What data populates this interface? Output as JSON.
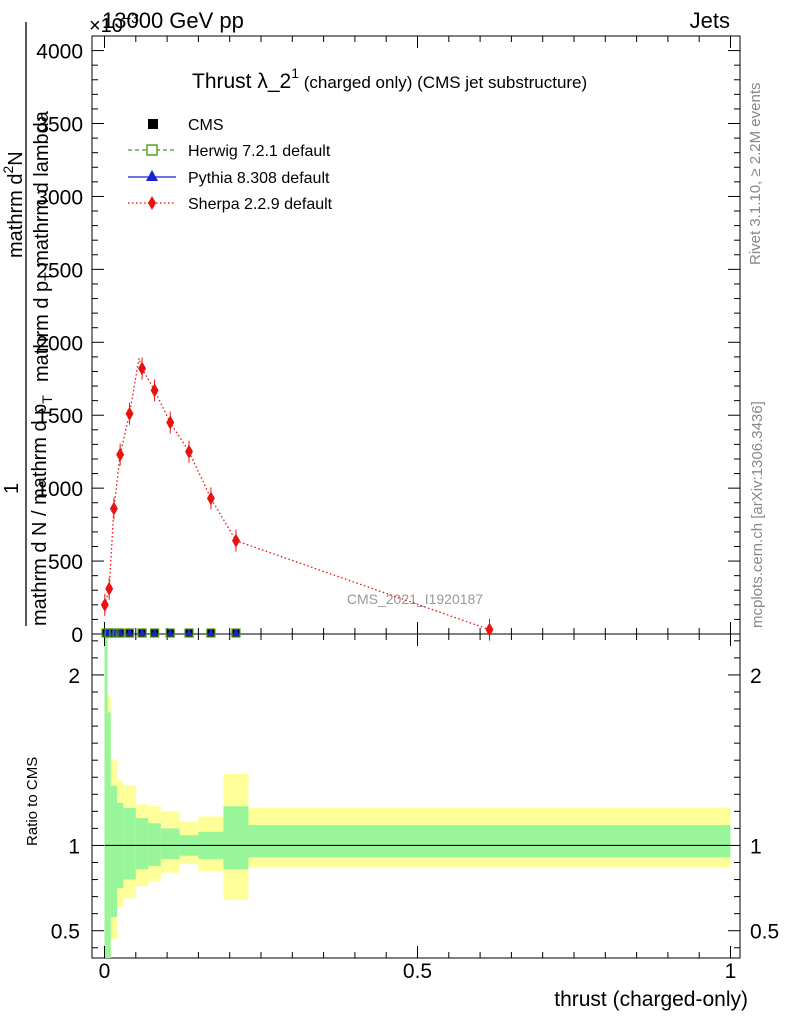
{
  "header": {
    "energy_label": "13000 GeV pp",
    "process_label": "Jets",
    "exponent_label": "×10",
    "exponent_power": "−3",
    "rivet_label": "Rivet 3.1.10, ≥ 2.2M events",
    "mcplots_label": "mcplots.cern.ch [arXiv:1306.3436]",
    "watermark": "CMS_2021_I1920187"
  },
  "chart_data": [
    {
      "type": "line",
      "title_main": "Thrust λ_2",
      "title_sup": "1",
      "title_rest": " (charged only) (CMS jet substructure)",
      "ylabel_top": "mathrm d",
      "ylabel_top_sup": "2",
      "ylabel_top_rest": "N",
      "ylabel_top2": "mathrm d p",
      "ylabel_top2_sub": "T",
      "ylabel_top3": " mathrm d lambda",
      "ylabel_one": "1",
      "ylabel_bottom": "mathrm d N / mathrm d p",
      "ylabel_bottom_sub": "T",
      "xlim": [
        0,
        1
      ],
      "ylim": [
        0,
        4.1
      ],
      "yticks": [
        {
          "v": 0,
          "label": "0"
        },
        {
          "v": 0.5,
          "label": "500"
        },
        {
          "v": 1.0,
          "label": "1000"
        },
        {
          "v": 1.5,
          "label": "1500"
        },
        {
          "v": 2.0,
          "label": "2000"
        },
        {
          "v": 2.5,
          "label": "2500"
        },
        {
          "v": 3.0,
          "label": "3000"
        },
        {
          "v": 3.5,
          "label": "3500"
        },
        {
          "v": 4.0,
          "label": "4000"
        }
      ],
      "legend": [
        "CMS",
        "Herwig 7.2.1 default",
        "Pythia 8.308 default",
        "Sherpa 2.2.9 default"
      ],
      "series": [
        {
          "name": "CMS",
          "color": "#000000",
          "marker": "square",
          "x": [
            0.0025,
            0.0075,
            0.015,
            0.025,
            0.04,
            0.06,
            0.08,
            0.105,
            0.135,
            0.17,
            0.21
          ],
          "y": [
            0,
            0,
            0,
            0,
            0,
            0,
            0,
            0,
            0,
            0,
            0
          ]
        },
        {
          "name": "Herwig 7.2.1 default",
          "color": "#4a9a1c",
          "marker": "open-square",
          "x": [
            0.0025,
            0.0075,
            0.015,
            0.025,
            0.04,
            0.06,
            0.08,
            0.105,
            0.135,
            0.17,
            0.21
          ],
          "y": [
            0,
            0,
            0,
            0,
            0,
            0,
            0,
            0,
            0,
            0,
            0
          ]
        },
        {
          "name": "Pythia 8.308 default",
          "color": "#1a22cc",
          "marker": "triangle",
          "x": [
            0.0025,
            0.0075,
            0.015,
            0.025,
            0.04,
            0.06,
            0.08,
            0.105,
            0.135,
            0.17,
            0.21
          ],
          "y": [
            0,
            0,
            0,
            0,
            0,
            0,
            0,
            0,
            0,
            0,
            0
          ]
        },
        {
          "name": "Sherpa 2.2.9 default",
          "color": "#e8120e",
          "marker": "diamond",
          "x": [
            0.0005,
            0.0075,
            0.015,
            0.025,
            0.04,
            0.06,
            0.08,
            0.105,
            0.135,
            0.17,
            0.21,
            0.615
          ],
          "y": [
            0.2,
            0.31,
            0.86,
            1.23,
            1.51,
            1.82,
            1.67,
            1.45,
            1.25,
            0.93,
            0.64,
            0.03
          ],
          "step_peak": [
            0.055,
            1.89
          ]
        }
      ]
    },
    {
      "type": "area",
      "ylabel": "Ratio to CMS",
      "xlabel": "thrust (charged-only)",
      "xlim": [
        0,
        1
      ],
      "ylim": [
        0.34,
        2.24
      ],
      "xticks": [
        {
          "v": 0,
          "label": "0"
        },
        {
          "v": 0.5,
          "label": "0.5"
        },
        {
          "v": 1,
          "label": "1"
        }
      ],
      "yticks": [
        {
          "v": 0.5,
          "label": "0.5"
        },
        {
          "v": 1,
          "label": "1"
        },
        {
          "v": 2,
          "label": "2"
        }
      ],
      "bands": [
        {
          "x0": 0.0,
          "x1": 0.005,
          "y_lo": 0.34,
          "y_hi": 2.24,
          "g_lo": 0.34,
          "g_hi": 2.24
        },
        {
          "x0": 0.005,
          "x1": 0.01,
          "y_lo": 0.34,
          "y_hi": 1.88,
          "g_lo": 0.34,
          "g_hi": 1.78
        },
        {
          "x0": 0.01,
          "x1": 0.02,
          "y_lo": 0.45,
          "y_hi": 1.5,
          "g_lo": 0.58,
          "g_hi": 1.35
        },
        {
          "x0": 0.02,
          "x1": 0.03,
          "y_lo": 0.64,
          "y_hi": 1.38,
          "g_lo": 0.75,
          "g_hi": 1.25
        },
        {
          "x0": 0.03,
          "x1": 0.05,
          "y_lo": 0.69,
          "y_hi": 1.35,
          "g_lo": 0.8,
          "g_hi": 1.22
        },
        {
          "x0": 0.05,
          "x1": 0.07,
          "y_lo": 0.76,
          "y_hi": 1.24,
          "g_lo": 0.86,
          "g_hi": 1.16
        },
        {
          "x0": 0.07,
          "x1": 0.09,
          "y_lo": 0.79,
          "y_hi": 1.23,
          "g_lo": 0.88,
          "g_hi": 1.13
        },
        {
          "x0": 0.09,
          "x1": 0.12,
          "y_lo": 0.84,
          "y_hi": 1.2,
          "g_lo": 0.92,
          "g_hi": 1.1
        },
        {
          "x0": 0.12,
          "x1": 0.15,
          "y_lo": 0.89,
          "y_hi": 1.14,
          "g_lo": 0.94,
          "g_hi": 1.06
        },
        {
          "x0": 0.15,
          "x1": 0.19,
          "y_lo": 0.85,
          "y_hi": 1.17,
          "g_lo": 0.92,
          "g_hi": 1.08
        },
        {
          "x0": 0.19,
          "x1": 0.23,
          "y_lo": 0.68,
          "y_hi": 1.42,
          "g_lo": 0.86,
          "g_hi": 1.23
        },
        {
          "x0": 0.23,
          "x1": 1.0,
          "y_lo": 0.87,
          "y_hi": 1.22,
          "g_lo": 0.93,
          "g_hi": 1.12
        }
      ],
      "colors": {
        "outer": "#ffff99",
        "inner": "#99f599",
        "line": "#000000"
      }
    }
  ]
}
